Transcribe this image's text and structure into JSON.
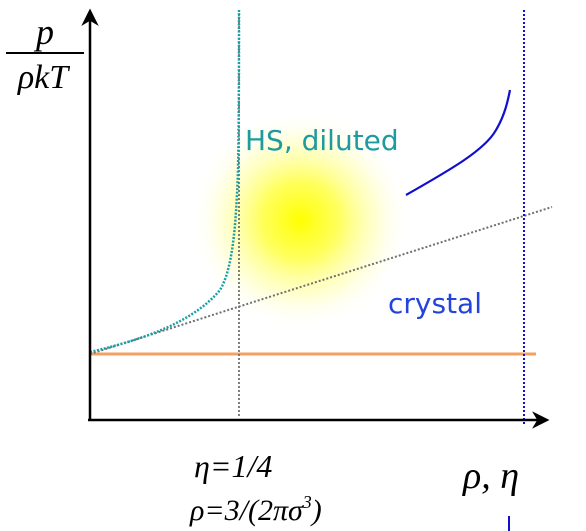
{
  "yaxis_label": {
    "numerator": "p",
    "denominator": "ρkT"
  },
  "xaxis_label": "ρ, η",
  "annotation_eta": "η=1/4",
  "annotation_rho": "ρ=3/(2πσ",
  "annotation_rho_sup": "3",
  "annotation_rho_close": ")",
  "label_hs": "HS, diluted",
  "label_crystal": "crystal",
  "colors": {
    "axis": "#000000",
    "teal_curve": "#1a9fa8",
    "blue_curve": "#1010cc",
    "orange_line": "#f4a060",
    "dotted_gray": "#707070",
    "label_hs": "#1e9aa0",
    "label_crystal": "#2244dd",
    "glow_center": "#ffff00"
  }
}
